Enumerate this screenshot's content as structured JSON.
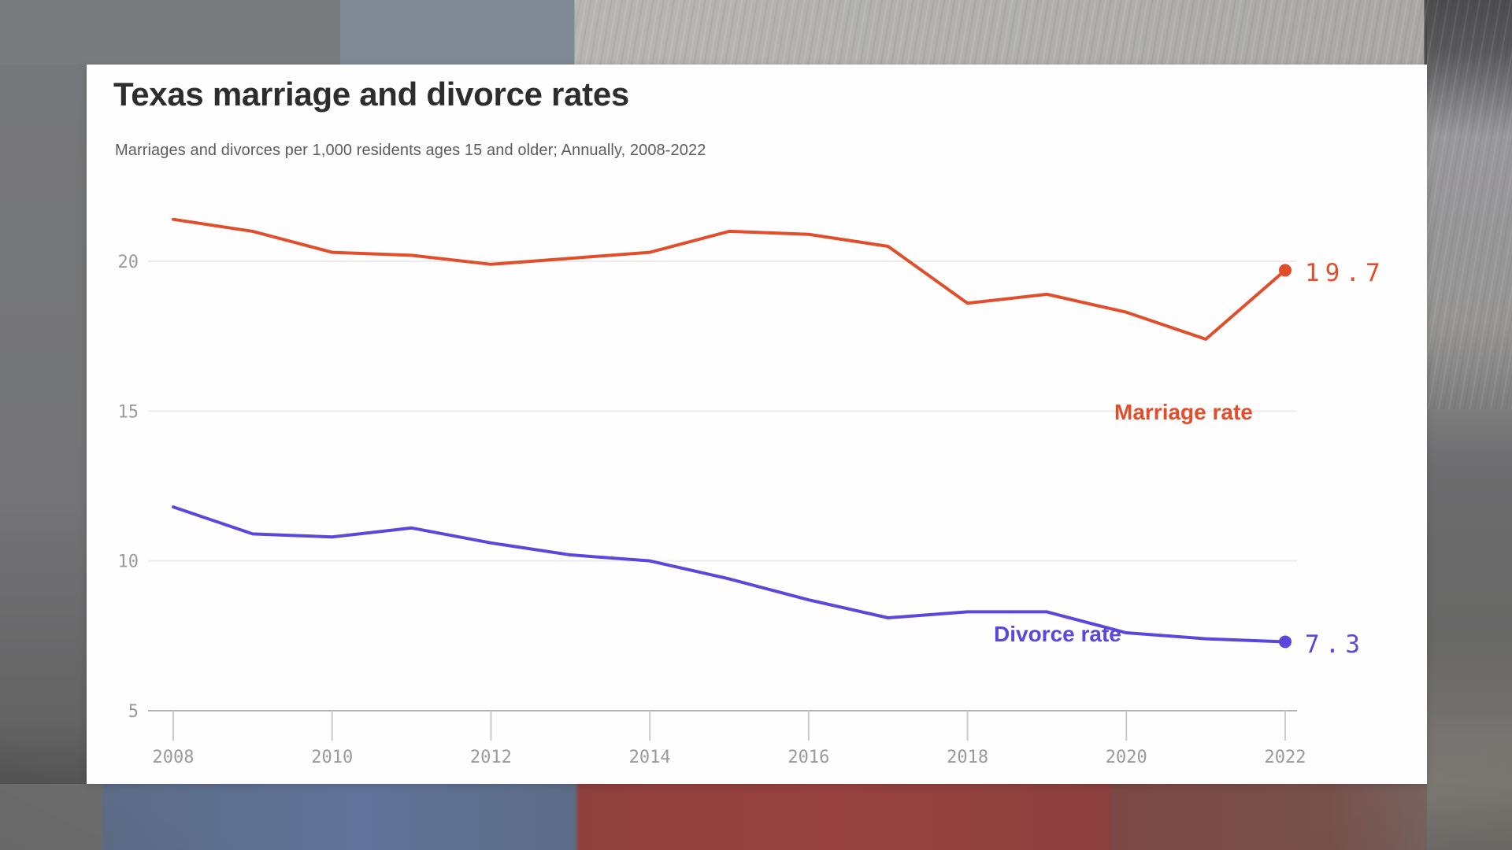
{
  "card": {
    "title": "Texas marriage and divorce rates",
    "subtitle": "Marriages and divorces per 1,000 residents ages 15 and older; Annually, 2008-2022"
  },
  "chart_data": {
    "type": "line",
    "title": "Texas marriage and divorce rates",
    "subtitle": "Marriages and divorces per 1,000 residents ages 15 and older; Annually, 2008-2022",
    "x": [
      2008,
      2009,
      2010,
      2011,
      2012,
      2013,
      2014,
      2015,
      2016,
      2017,
      2018,
      2019,
      2020,
      2021,
      2022
    ],
    "series": [
      {
        "name": "Marriage rate",
        "color": "#E14E2B",
        "values": [
          21.4,
          21.0,
          20.3,
          20.2,
          19.9,
          20.1,
          20.3,
          21.0,
          20.9,
          20.5,
          18.6,
          18.9,
          18.3,
          17.4,
          19.7
        ],
        "end_label": "19.7"
      },
      {
        "name": "Divorce rate",
        "color": "#5A47DB",
        "values": [
          11.8,
          10.9,
          10.8,
          11.1,
          10.6,
          10.2,
          10.0,
          9.4,
          8.7,
          8.1,
          8.3,
          8.3,
          7.6,
          7.4,
          7.3
        ],
        "end_label": "7.3"
      }
    ],
    "xticks": [
      "2008",
      "2010",
      "2012",
      "2014",
      "2016",
      "2018",
      "2020",
      "2022"
    ],
    "yticks": [
      "5",
      "10",
      "15",
      "20"
    ],
    "ylim": [
      5,
      22.5
    ],
    "xlabel": "",
    "ylabel": "",
    "grid": "horizontal gridlines at yticks; bottom axis line with downward ticks at xticks",
    "legend": "direct labels on lines with end-value dots"
  }
}
